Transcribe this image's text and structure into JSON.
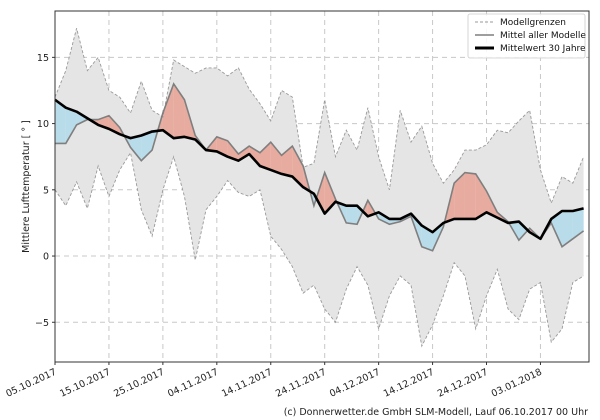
{
  "chart_data": {
    "type": "line",
    "title": "",
    "xlabel": "",
    "ylabel": "Mittlere Lufttemperatur [ ° ]",
    "ylim": [
      -8,
      18.5
    ],
    "xlim_days": [
      0,
      99
    ],
    "grid": true,
    "legend_position": "top-right",
    "start_date": "05.10.2017",
    "x_tick_labels": [
      "05.10.2017",
      "15.10.2017",
      "25.10.2017",
      "04.11.2017",
      "14.11.2017",
      "24.11.2017",
      "04.12.2017",
      "14.12.2017",
      "24.12.2017",
      "03.01.2018"
    ],
    "x_tick_days": [
      0,
      10,
      20,
      30,
      40,
      50,
      60,
      70,
      80,
      90
    ],
    "y_ticks": [
      -5,
      0,
      5,
      10,
      15
    ],
    "y_tick_labels": [
      "−5",
      "0",
      "5",
      "10",
      "15"
    ],
    "x_days": [
      0,
      2,
      4,
      6,
      8,
      10,
      12,
      14,
      16,
      18,
      20,
      22,
      24,
      26,
      28,
      30,
      32,
      34,
      36,
      38,
      40,
      42,
      44,
      46,
      48,
      50,
      52,
      54,
      56,
      58,
      60,
      62,
      64,
      66,
      68,
      70,
      72,
      74,
      76,
      78,
      80,
      82,
      84,
      86,
      88,
      90,
      92,
      94,
      96,
      98
    ],
    "series": [
      {
        "name": "Modellgrenzen",
        "style": "dashed",
        "upper": [
          12.0,
          14.0,
          17.2,
          14.0,
          15.0,
          12.5,
          12.0,
          10.8,
          13.2,
          11.0,
          10.5,
          14.8,
          14.3,
          13.8,
          14.2,
          14.2,
          13.6,
          14.2,
          12.6,
          11.5,
          10.2,
          12.5,
          12.0,
          6.7,
          7.0,
          11.8,
          7.5,
          9.5,
          8.0,
          11.2,
          7.5,
          5.0,
          11.0,
          8.6,
          9.8,
          7.0,
          5.5,
          6.5,
          8.0,
          8.0,
          8.4,
          9.5,
          9.3,
          10.2,
          11.0,
          6.5,
          4.0,
          6.0,
          5.5,
          7.5
        ],
        "lower": [
          5.0,
          3.8,
          5.6,
          3.6,
          6.8,
          4.5,
          6.5,
          7.8,
          3.5,
          1.5,
          5.0,
          7.5,
          4.5,
          -0.3,
          3.5,
          4.5,
          5.7,
          4.8,
          4.5,
          5.0,
          1.5,
          0.5,
          -0.8,
          -2.8,
          -2.2,
          -4.0,
          -5.0,
          -2.5,
          -0.8,
          -2.2,
          -5.5,
          -3.0,
          -1.5,
          -2.2,
          -6.8,
          -5.2,
          -3.0,
          -0.5,
          -1.5,
          -5.5,
          -3.0,
          -1.0,
          -4.0,
          -4.8,
          -2.5,
          -2.0,
          -6.5,
          -5.5,
          -2.0,
          -1.5
        ]
      },
      {
        "name": "Mittel aller Modelle",
        "style": "solid-gray",
        "values": [
          8.5,
          8.5,
          9.9,
          10.3,
          10.3,
          10.6,
          9.7,
          8.2,
          7.2,
          8.0,
          10.8,
          13.0,
          11.8,
          9.1,
          8.0,
          9.0,
          8.7,
          7.7,
          8.3,
          7.8,
          8.6,
          7.6,
          8.3,
          6.8,
          3.8,
          6.3,
          4.3,
          2.5,
          2.4,
          4.2,
          2.8,
          2.4,
          2.6,
          3.0,
          0.7,
          0.4,
          2.2,
          5.5,
          6.3,
          6.2,
          4.9,
          3.3,
          2.6,
          1.2,
          2.1,
          1.3,
          2.5,
          0.7,
          1.3,
          1.9
        ],
        "color": "#7f7f7f"
      },
      {
        "name": "Mittelwert 30 Jahre",
        "style": "solid-thick",
        "values": [
          11.8,
          11.2,
          10.9,
          10.4,
          9.9,
          9.6,
          9.2,
          8.9,
          9.1,
          9.4,
          9.5,
          8.9,
          9.0,
          8.8,
          8.0,
          7.9,
          7.5,
          7.2,
          7.7,
          6.8,
          6.5,
          6.2,
          6.0,
          5.2,
          4.7,
          3.2,
          4.1,
          3.8,
          3.8,
          3.0,
          3.3,
          2.8,
          2.8,
          3.2,
          2.3,
          1.8,
          2.5,
          2.8,
          2.8,
          2.8,
          3.3,
          2.9,
          2.5,
          2.6,
          1.8,
          1.3,
          2.8,
          3.4,
          3.4,
          3.6
        ],
        "color": "#000000"
      }
    ],
    "fill_colors": {
      "band": "#e5e5e5",
      "warmer": "#e8ab9f",
      "colder": "#b9dcea"
    }
  },
  "legend": {
    "items": [
      "Modellgrenzen",
      "Mittel aller Modelle",
      "Mittelwert 30 Jahre"
    ]
  },
  "footer": {
    "credit": "(c) Donnerwetter.de GmbH SLM-Modell, Lauf 06.10.2017 00 Uhr"
  }
}
